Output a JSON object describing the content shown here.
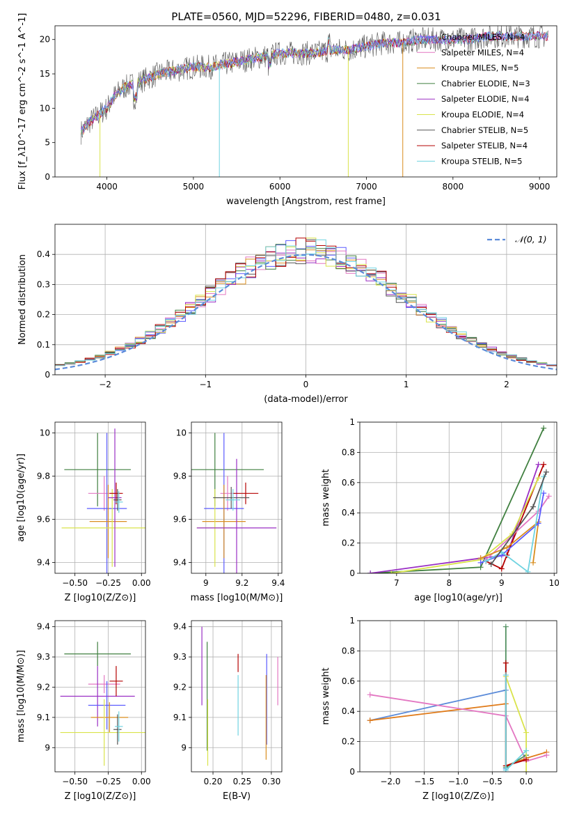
{
  "figure": {
    "title": "PLATE=0560, MJD=52296, FIBERID=0480, z=0.031"
  },
  "colors": {
    "chabrier_miles": "#5a5aff",
    "salpeter_miles": "#e377c2",
    "kroupa_miles": "#d98d1e",
    "chabrier_elodie": "#3f7f3f",
    "salpeter_elodie": "#9a2fc4",
    "kroupa_elodie": "#d9e34a",
    "chabrier_stelib": "#555555",
    "salpeter_stelib": "#b40000",
    "kroupa_stelib": "#6fd3e0",
    "gauss": "#5b8bd9",
    "z_blue": "#5b8bd9",
    "z_orange": "#e07b1a",
    "z_pink": "#e377c2",
    "z_green": "#4f8f5f"
  },
  "chart_data": [
    {
      "id": "spectrum",
      "type": "line",
      "xlabel": "wavelength [Angstrom, rest frame]",
      "ylabel": "Flux [f_λ10^-17 erg cm^-2 s^-1 A^-1]",
      "xlim": [
        3400,
        9200
      ],
      "ylim": [
        0,
        22
      ],
      "xticks": [
        4000,
        5000,
        6000,
        7000,
        8000,
        9000
      ],
      "yticks": [
        0,
        5,
        10,
        15,
        20
      ],
      "grid": false,
      "legend_position": "right",
      "legend": [
        {
          "name": "Chabrier MILES, N_SSP=4",
          "color_key": "chabrier_miles"
        },
        {
          "name": "Salpeter MILES, N_SSP=4",
          "color_key": "salpeter_miles"
        },
        {
          "name": "Kroupa MILES, N_SSP=5",
          "color_key": "kroupa_miles"
        },
        {
          "name": "Chabrier ELODIE, N_SSP=3",
          "color_key": "chabrier_elodie"
        },
        {
          "name": "Salpeter ELODIE, N_SSP=4",
          "color_key": "salpeter_elodie"
        },
        {
          "name": "Kroupa ELODIE, N_SSP=4",
          "color_key": "kroupa_elodie"
        },
        {
          "name": "Chabrier STELIB, N_SSP=5",
          "color_key": "chabrier_stelib"
        },
        {
          "name": "Salpeter STELIB, N_SSP=4",
          "color_key": "salpeter_stelib"
        },
        {
          "name": "Kroupa STELIB, N_SSP=5",
          "color_key": "kroupa_stelib"
        }
      ],
      "continuum": [
        [
          3700,
          6.5
        ],
        [
          3800,
          8
        ],
        [
          3900,
          9
        ],
        [
          4000,
          10
        ],
        [
          4100,
          12
        ],
        [
          4200,
          13
        ],
        [
          4300,
          13.5
        ],
        [
          4400,
          14
        ],
        [
          4600,
          15
        ],
        [
          4800,
          15.5
        ],
        [
          5000,
          16
        ],
        [
          5200,
          16
        ],
        [
          5400,
          16.5
        ],
        [
          5600,
          17
        ],
        [
          5800,
          17.5
        ],
        [
          6000,
          18
        ],
        [
          6200,
          18
        ],
        [
          6400,
          18
        ],
        [
          6600,
          18.5
        ],
        [
          6800,
          18.5
        ],
        [
          7000,
          19
        ],
        [
          7200,
          19.5
        ],
        [
          7400,
          19.5
        ],
        [
          7600,
          20
        ],
        [
          7800,
          20
        ],
        [
          8000,
          20
        ],
        [
          8200,
          20
        ],
        [
          8400,
          20.5
        ],
        [
          8600,
          20.5
        ],
        [
          8800,
          20.5
        ],
        [
          9000,
          20.5
        ],
        [
          9100,
          20.5
        ]
      ],
      "drops": [
        {
          "x": 3920,
          "y": 0,
          "color_key": "kroupa_elodie"
        },
        {
          "x": 5300,
          "y": 0,
          "color_key": "kroupa_stelib"
        },
        {
          "x": 6790,
          "y": 0,
          "color_key": "kroupa_elodie"
        },
        {
          "x": 7420,
          "y": 0,
          "color_key": "kroupa_miles"
        }
      ]
    },
    {
      "id": "residuals",
      "type": "bar",
      "xlabel": "(data-model)/error",
      "ylabel": "Normed distribution",
      "xlim": [
        -2.5,
        2.5
      ],
      "ylim": [
        0,
        0.5
      ],
      "xticks": [
        -2,
        -1,
        0,
        1,
        2
      ],
      "yticks": [
        0.0,
        0.1,
        0.2,
        0.3,
        0.4
      ],
      "grid": true,
      "legend_position": "top-right",
      "gauss_label": "𝒩(0, 1)",
      "bin_width": 0.1
    },
    {
      "id": "age_vs_Z",
      "type": "scatter",
      "xlabel": "Z [log10(Z/Z⊙)]",
      "ylabel": "age  [log10(age/yr)]",
      "xlim": [
        -0.65,
        0.03
      ],
      "ylim": [
        9.35,
        10.05
      ],
      "xticks": [
        -0.5,
        -0.25,
        0.0
      ],
      "xtick_labels": [
        "−0.50",
        "−0.25",
        "0.00"
      ],
      "yticks": [
        9.4,
        9.6,
        9.8,
        10.0
      ],
      "grid": true,
      "points": [
        {
          "x": -0.33,
          "y": 9.83,
          "xerr": 0.25,
          "yerr": 0.17,
          "color_key": "chabrier_elodie"
        },
        {
          "x": -0.28,
          "y": 9.72,
          "xerr": 0.12,
          "yerr": 0.08,
          "color_key": "salpeter_miles"
        },
        {
          "x": -0.26,
          "y": 9.65,
          "xerr": 0.15,
          "yerr": 0.35,
          "color_key": "chabrier_miles"
        },
        {
          "x": -0.25,
          "y": 9.59,
          "xerr": 0.14,
          "yerr": 0.17,
          "color_key": "kroupa_miles"
        },
        {
          "x": -0.22,
          "y": 9.56,
          "xerr": 0.38,
          "yerr": 0.18,
          "color_key": "kroupa_elodie"
        },
        {
          "x": -0.2,
          "y": 9.7,
          "xerr": 0.05,
          "yerr": 0.32,
          "color_key": "salpeter_elodie"
        },
        {
          "x": -0.19,
          "y": 9.72,
          "xerr": 0.05,
          "yerr": 0.05,
          "color_key": "salpeter_stelib"
        },
        {
          "x": -0.18,
          "y": 9.69,
          "xerr": 0.03,
          "yerr": 0.05,
          "color_key": "chabrier_stelib"
        },
        {
          "x": -0.17,
          "y": 9.68,
          "xerr": 0.03,
          "yerr": 0.05,
          "color_key": "kroupa_stelib"
        }
      ]
    },
    {
      "id": "age_vs_mass",
      "type": "scatter",
      "xlabel": "mass [log10(M/M⊙)]",
      "ylabel": "",
      "xlim": [
        8.92,
        9.42
      ],
      "ylim": [
        9.35,
        10.05
      ],
      "xticks": [
        9.0,
        9.2,
        9.4
      ],
      "yticks": [
        9.4,
        9.6,
        9.8,
        10.0
      ],
      "grid": true,
      "points": [
        {
          "x": 9.05,
          "y": 9.83,
          "xerr": 0.27,
          "yerr": 0.17,
          "color_key": "chabrier_elodie"
        },
        {
          "x": 9.12,
          "y": 9.72,
          "xerr": 0.04,
          "yerr": 0.08,
          "color_key": "salpeter_miles"
        },
        {
          "x": 9.1,
          "y": 9.65,
          "xerr": 0.11,
          "yerr": 0.35,
          "color_key": "chabrier_miles"
        },
        {
          "x": 9.1,
          "y": 9.59,
          "xerr": 0.12,
          "yerr": 0.17,
          "color_key": "kroupa_miles"
        },
        {
          "x": 9.05,
          "y": 9.56,
          "xerr": 0.1,
          "yerr": 0.18,
          "color_key": "kroupa_elodie"
        },
        {
          "x": 9.17,
          "y": 9.56,
          "xerr": 0.22,
          "yerr": 0.32,
          "color_key": "salpeter_elodie"
        },
        {
          "x": 9.22,
          "y": 9.72,
          "xerr": 0.07,
          "yerr": 0.05,
          "color_key": "salpeter_stelib"
        },
        {
          "x": 9.14,
          "y": 9.7,
          "xerr": 0.1,
          "yerr": 0.05,
          "color_key": "chabrier_stelib"
        },
        {
          "x": 9.15,
          "y": 9.69,
          "xerr": 0.04,
          "yerr": 0.05,
          "color_key": "kroupa_stelib"
        }
      ]
    },
    {
      "id": "weight_vs_age",
      "type": "line",
      "xlabel": "age  [log10(age/yr)]",
      "ylabel": "mass weight",
      "xlim": [
        6.3,
        10.05
      ],
      "ylim": [
        0,
        1
      ],
      "xticks": [
        7,
        8,
        9,
        10
      ],
      "yticks": [
        0.0,
        0.2,
        0.4,
        0.6,
        0.8,
        1.0
      ],
      "grid": true,
      "series": [
        {
          "color_key": "chabrier_elodie",
          "points": [
            [
              6.5,
              0.0
            ],
            [
              8.6,
              0.04
            ],
            [
              9.8,
              0.96
            ]
          ]
        },
        {
          "color_key": "salpeter_elodie",
          "points": [
            [
              6.5,
              0.0
            ],
            [
              8.6,
              0.1
            ],
            [
              9.1,
              0.12
            ],
            [
              9.7,
              0.72
            ]
          ]
        },
        {
          "color_key": "salpeter_stelib",
          "points": [
            [
              8.7,
              0.08
            ],
            [
              9.0,
              0.03
            ],
            [
              9.1,
              0.12
            ],
            [
              9.8,
              0.72
            ]
          ]
        },
        {
          "color_key": "kroupa_elodie",
          "points": [
            [
              6.9,
              0.0
            ],
            [
              8.6,
              0.09
            ],
            [
              9.2,
              0.26
            ],
            [
              9.7,
              0.63
            ]
          ]
        },
        {
          "color_key": "salpeter_miles",
          "points": [
            [
              8.7,
              0.09
            ],
            [
              9.7,
              0.41
            ],
            [
              9.9,
              0.51
            ]
          ]
        },
        {
          "color_key": "kroupa_miles",
          "points": [
            [
              8.6,
              0.1
            ],
            [
              9.1,
              0.17
            ],
            [
              9.7,
              0.34
            ],
            [
              9.6,
              0.07
            ]
          ]
        },
        {
          "color_key": "chabrier_miles",
          "points": [
            [
              8.6,
              0.07
            ],
            [
              9.0,
              0.12
            ],
            [
              9.7,
              0.33
            ],
            [
              9.8,
              0.53
            ]
          ]
        },
        {
          "color_key": "kroupa_stelib",
          "points": [
            [
              8.7,
              0.08
            ],
            [
              9.0,
              0.14
            ],
            [
              9.5,
              0.01
            ],
            [
              9.8,
              0.64
            ]
          ]
        },
        {
          "color_key": "chabrier_stelib",
          "points": [
            [
              8.8,
              0.06
            ],
            [
              9.6,
              0.44
            ],
            [
              9.85,
              0.67
            ]
          ]
        }
      ]
    },
    {
      "id": "mass_vs_Z",
      "type": "scatter",
      "xlabel": "Z [log10(Z/Z⊙)]",
      "ylabel": "mass [log10(M/M⊙)]",
      "xlim": [
        -0.65,
        0.03
      ],
      "ylim": [
        8.92,
        9.42
      ],
      "xticks": [
        -0.5,
        -0.25,
        0.0
      ],
      "xtick_labels": [
        "−0.50",
        "−0.25",
        "0.00"
      ],
      "yticks": [
        9.0,
        9.1,
        9.2,
        9.3,
        9.4
      ],
      "grid": true,
      "points": [
        {
          "x": -0.33,
          "y": 9.31,
          "xerr": 0.25,
          "yerr": 0.04,
          "color_key": "chabrier_elodie"
        },
        {
          "x": -0.28,
          "y": 9.21,
          "xerr": 0.12,
          "yerr": 0.03,
          "color_key": "salpeter_miles"
        },
        {
          "x": -0.33,
          "y": 9.17,
          "xerr": 0.28,
          "yerr": 0.1,
          "color_key": "salpeter_elodie"
        },
        {
          "x": -0.26,
          "y": 9.14,
          "xerr": 0.14,
          "yerr": 0.08,
          "color_key": "chabrier_miles"
        },
        {
          "x": -0.24,
          "y": 9.1,
          "xerr": 0.14,
          "yerr": 0.05,
          "color_key": "kroupa_miles"
        },
        {
          "x": -0.28,
          "y": 9.05,
          "xerr": 0.33,
          "yerr": 0.11,
          "color_key": "kroupa_elodie"
        },
        {
          "x": -0.19,
          "y": 9.22,
          "xerr": 0.05,
          "yerr": 0.05,
          "color_key": "salpeter_stelib"
        },
        {
          "x": -0.18,
          "y": 9.06,
          "xerr": 0.03,
          "yerr": 0.05,
          "color_key": "chabrier_stelib"
        },
        {
          "x": -0.17,
          "y": 9.07,
          "xerr": 0.03,
          "yerr": 0.05,
          "color_key": "kroupa_stelib"
        }
      ]
    },
    {
      "id": "mass_vs_ebv",
      "type": "scatter",
      "xlabel": "E(B-V)",
      "ylabel": "",
      "xlim": [
        0.163,
        0.318
      ],
      "ylim": [
        8.92,
        9.42
      ],
      "xticks": [
        0.2,
        0.25,
        0.3
      ],
      "xtick_labels": [
        "0.20",
        "0.25",
        "0.30"
      ],
      "yticks": [
        9.0,
        9.1,
        9.2,
        9.3,
        9.4
      ],
      "grid": true,
      "points": [
        {
          "x": 0.181,
          "y": 9.27,
          "yerr": 0.13,
          "color_key": "salpeter_elodie"
        },
        {
          "x": 0.19,
          "y": 9.17,
          "yerr": 0.18,
          "color_key": "chabrier_elodie"
        },
        {
          "x": 0.191,
          "y": 9.05,
          "yerr": 0.11,
          "color_key": "kroupa_elodie"
        },
        {
          "x": 0.243,
          "y": 9.28,
          "yerr": 0.03,
          "color_key": "salpeter_stelib"
        },
        {
          "x": 0.243,
          "y": 9.14,
          "yerr": 0.1,
          "color_key": "kroupa_stelib"
        },
        {
          "x": 0.292,
          "y": 9.16,
          "yerr": 0.15,
          "color_key": "chabrier_miles"
        },
        {
          "x": 0.291,
          "y": 9.1,
          "yerr": 0.14,
          "color_key": "kroupa_miles"
        },
        {
          "x": 0.311,
          "y": 9.22,
          "yerr": 0.08,
          "color_key": "salpeter_miles"
        }
      ]
    },
    {
      "id": "weight_vs_Z",
      "type": "line",
      "xlabel": "Z [log10(Z/Z⊙)]",
      "ylabel": "mass weight",
      "xlim": [
        -2.45,
        0.45
      ],
      "ylim": [
        0,
        1
      ],
      "xticks": [
        -2.0,
        -1.5,
        -1.0,
        -0.5,
        0.0
      ],
      "xtick_labels": [
        "−2.0",
        "−1.5",
        "−1.0",
        "−0.5",
        "0.0"
      ],
      "yticks": [
        0.0,
        0.2,
        0.4,
        0.6,
        0.8,
        1.0
      ],
      "grid": true,
      "series": [
        {
          "color_key": "z_blue",
          "points": [
            [
              -2.3,
              0.34
            ],
            [
              -0.3,
              0.54
            ],
            [
              -0.3,
              0.02
            ]
          ]
        },
        {
          "color_key": "z_orange",
          "points": [
            [
              -2.3,
              0.34
            ],
            [
              -0.3,
              0.45
            ],
            [
              -0.3,
              0.04
            ],
            [
              0.0,
              0.09
            ],
            [
              0.3,
              0.13
            ]
          ]
        },
        {
          "color_key": "z_pink",
          "points": [
            [
              -2.3,
              0.51
            ],
            [
              -0.3,
              0.37
            ],
            [
              0.0,
              0.07
            ],
            [
              0.3,
              0.11
            ]
          ]
        },
        {
          "color_key": "z_green",
          "points": [
            [
              -0.3,
              0.96
            ],
            [
              -0.3,
              0.03
            ],
            [
              0.0,
              0.11
            ]
          ]
        },
        {
          "color_key": "kroupa_elodie",
          "points": [
            [
              -0.3,
              0.63
            ],
            [
              0.0,
              0.26
            ],
            [
              0.0,
              0.0
            ]
          ]
        },
        {
          "color_key": "salpeter_stelib",
          "points": [
            [
              -0.3,
              0.72
            ],
            [
              -0.3,
              0.04
            ],
            [
              0.0,
              0.08
            ]
          ]
        },
        {
          "color_key": "kroupa_stelib",
          "points": [
            [
              -0.3,
              0.64
            ],
            [
              -0.3,
              0.01
            ],
            [
              0.0,
              0.14
            ]
          ]
        }
      ]
    }
  ]
}
